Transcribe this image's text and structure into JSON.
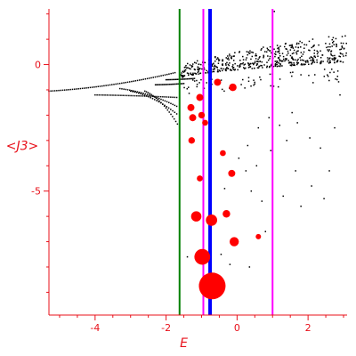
{
  "chart_data": {
    "type": "scatter",
    "title": "",
    "xlabel": "E",
    "ylabel": "<J3>",
    "xlim": [
      -5.3,
      3.1
    ],
    "ylim": [
      -9.9,
      2.2
    ],
    "grid": false,
    "colors": {
      "axis": "#e8101a",
      "points": "#000000",
      "highlight": "#ff0000"
    },
    "x_ticks": [
      {
        "value": -4,
        "label": "-4"
      },
      {
        "value": -2,
        "label": "-2"
      },
      {
        "value": 0,
        "label": "0"
      },
      {
        "value": 2,
        "label": "2"
      }
    ],
    "y_ticks": [
      {
        "value": 0,
        "label": "0"
      },
      {
        "value": -5,
        "label": "-5"
      }
    ],
    "vertical_lines": [
      {
        "x": -1.62,
        "color": "#008000"
      },
      {
        "x": -0.95,
        "color": "#ff00ff"
      },
      {
        "x": -0.76,
        "color": "#0000ff"
      },
      {
        "x": 1.0,
        "color": "#ff00ff"
      }
    ],
    "highlighted_points": [
      {
        "x": -0.7,
        "y": -8.75,
        "weight": 1.0
      },
      {
        "x": -0.98,
        "y": -7.6,
        "weight": 0.35
      },
      {
        "x": -0.72,
        "y": -6.15,
        "weight": 0.18
      },
      {
        "x": -1.15,
        "y": -6.0,
        "weight": 0.15
      },
      {
        "x": -0.08,
        "y": -7.0,
        "weight": 0.12
      },
      {
        "x": -0.3,
        "y": -5.9,
        "weight": 0.08
      },
      {
        "x": -0.15,
        "y": -4.3,
        "weight": 0.07
      },
      {
        "x": -0.12,
        "y": -0.9,
        "weight": 0.08
      },
      {
        "x": -0.55,
        "y": -0.7,
        "weight": 0.07
      },
      {
        "x": -1.05,
        "y": -1.3,
        "weight": 0.07
      },
      {
        "x": -1.3,
        "y": -1.7,
        "weight": 0.07
      },
      {
        "x": -1.25,
        "y": -2.1,
        "weight": 0.07
      },
      {
        "x": -1.0,
        "y": -2.0,
        "weight": 0.06
      },
      {
        "x": -1.28,
        "y": -3.0,
        "weight": 0.06
      },
      {
        "x": -0.9,
        "y": -2.3,
        "weight": 0.05
      },
      {
        "x": -0.4,
        "y": -3.5,
        "weight": 0.05
      },
      {
        "x": -1.05,
        "y": -4.5,
        "weight": 0.05
      },
      {
        "x": 0.6,
        "y": -6.8,
        "weight": 0.04
      }
    ],
    "scattered_points": [
      [
        -0.35,
        -4.9
      ],
      [
        0.05,
        -3.7
      ],
      [
        0.3,
        -3.2
      ],
      [
        0.6,
        -2.5
      ],
      [
        0.9,
        -2.1
      ],
      [
        1.2,
        -2.4
      ],
      [
        1.7,
        -2.3
      ],
      [
        2.05,
        -2.9
      ],
      [
        2.35,
        -3.3
      ],
      [
        2.75,
        -2.5
      ],
      [
        2.9,
        -1.2
      ],
      [
        0.25,
        -4.2
      ],
      [
        0.55,
        -4.0
      ],
      [
        0.95,
        -3.4
      ],
      [
        1.4,
        -3.0
      ],
      [
        0.7,
        -5.4
      ],
      [
        1.3,
        -5.2
      ],
      [
        1.65,
        -4.2
      ],
      [
        2.1,
        -4.8
      ],
      [
        2.6,
        -4.2
      ],
      [
        1.8,
        -5.6
      ],
      [
        2.45,
        -5.3
      ],
      [
        0.4,
        -5.0
      ],
      [
        -1.05,
        -8.7
      ],
      [
        -0.45,
        -7.5
      ],
      [
        0.35,
        -8.0
      ],
      [
        -1.4,
        -7.6
      ],
      [
        -0.2,
        -7.9
      ],
      [
        0.8,
        -6.6
      ],
      [
        1.55,
        -1.9
      ]
    ],
    "branches": [
      {
        "x_start": -5.3,
        "y_start": -1.05,
        "x_end": -1.75,
        "y_end": -0.32
      },
      {
        "x_start": -4.0,
        "y_start": -1.2,
        "x_end": -1.7,
        "y_end": -1.3
      },
      {
        "x_start": -3.3,
        "y_start": -0.95,
        "x_end": -1.7,
        "y_end": -1.65
      },
      {
        "x_start": -3.0,
        "y_start": -1.05,
        "x_end": -1.7,
        "y_end": -1.95
      },
      {
        "x_start": -2.6,
        "y_start": -1.05,
        "x_end": -1.68,
        "y_end": -2.35
      },
      {
        "x_start": -2.3,
        "y_start": -0.8,
        "x_end": -1.5,
        "y_end": -0.75
      },
      {
        "x_start": -2.0,
        "y_start": -0.6,
        "x_end": -1.2,
        "y_end": -0.55
      }
    ],
    "upper_cloud": {
      "x_range": [
        -1.6,
        3.1
      ],
      "y_bottom_start": -0.55,
      "y_bottom_end": 0.1,
      "y_top_start": -0.1,
      "y_top_end": 1.2,
      "peak_y": 2.1,
      "peak_x": 1.05
    }
  }
}
